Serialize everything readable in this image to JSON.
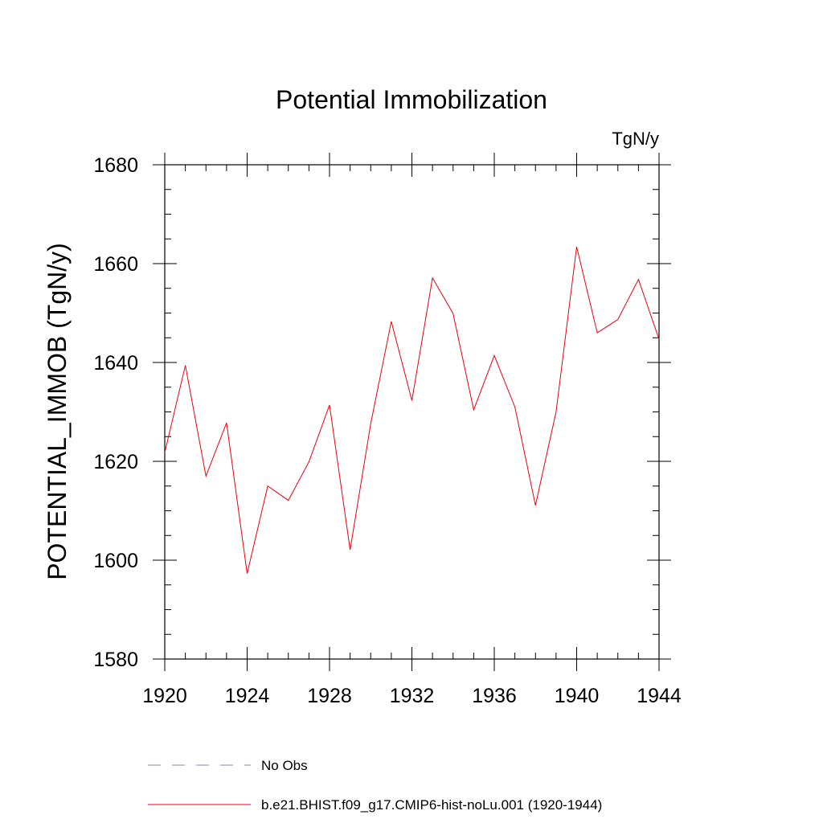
{
  "chart_data": {
    "type": "line",
    "title": "Potential Immobilization",
    "units_label": "TgN/y",
    "xlabel": "",
    "ylabel": "POTENTIAL_IMMOB  (TgN/y)",
    "xlim": [
      1920,
      1944
    ],
    "ylim": [
      1580,
      1680
    ],
    "x_ticks": [
      1920,
      1924,
      1928,
      1932,
      1936,
      1940,
      1944
    ],
    "x_minor_step": 1,
    "y_ticks": [
      1580,
      1600,
      1620,
      1640,
      1660,
      1680
    ],
    "y_minor_step": 5,
    "grid": false,
    "legend_position": "bottom",
    "legend": [
      {
        "label": "No Obs",
        "style": "dashed",
        "color": "#8080c0"
      },
      {
        "label": "b.e21.BHIST.f09_g17.CMIP6-hist-noLu.001 (1920-1944)",
        "style": "solid",
        "color": "#e8000b"
      }
    ],
    "series": [
      {
        "name": "b.e21.BHIST.f09_g17.CMIP6-hist-noLu.001 (1920-1944)",
        "color": "#e8000b",
        "x": [
          1920,
          1921,
          1922,
          1923,
          1924,
          1925,
          1926,
          1927,
          1928,
          1929,
          1930,
          1931,
          1932,
          1933,
          1934,
          1935,
          1936,
          1937,
          1938,
          1939,
          1940,
          1941,
          1942,
          1943,
          1944
        ],
        "values": [
          1621.8,
          1639.4,
          1617.0,
          1627.8,
          1597.3,
          1615.0,
          1612.1,
          1619.9,
          1631.4,
          1602.1,
          1627.6,
          1648.3,
          1632.3,
          1657.1,
          1649.9,
          1630.4,
          1641.4,
          1631.0,
          1611.1,
          1630.0,
          1663.4,
          1646.0,
          1648.7,
          1656.8,
          1644.7
        ]
      }
    ]
  }
}
